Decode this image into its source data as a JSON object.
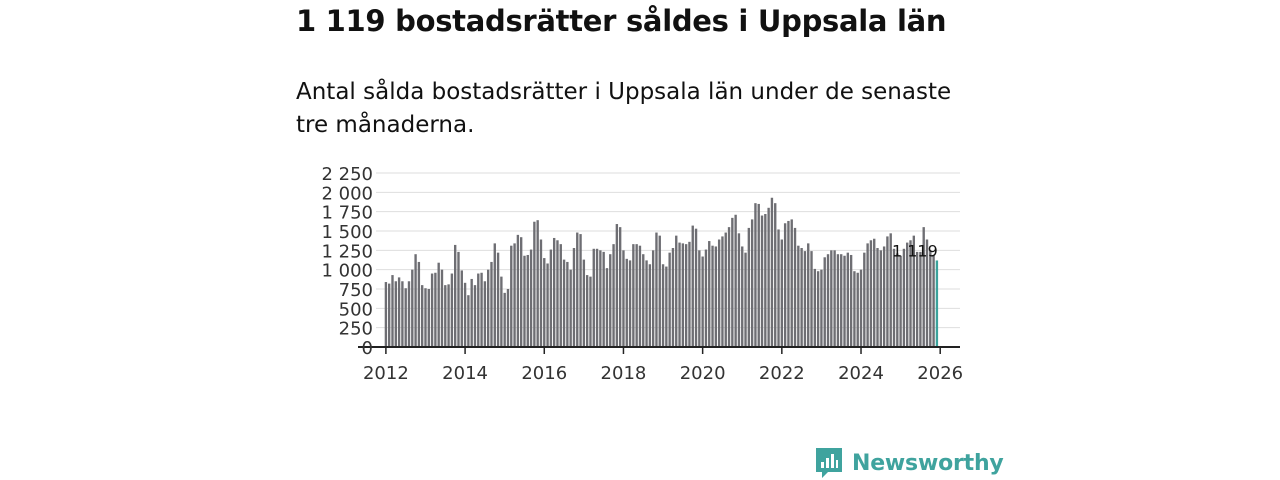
{
  "title": "1 119 bostadsrätter såldes i Uppsala län",
  "subtitle": "Antal sålda bostadsrätter i Uppsala län under de senaste tre månaderna.",
  "brand": {
    "name": "Newsworthy"
  },
  "colors": {
    "bar": "#6e6e73",
    "bar_highlight": "#3ba39c",
    "grid": "#dedede",
    "axis": "#222222",
    "brand": "#3fa39e"
  },
  "chart_data": {
    "type": "bar",
    "title": "1 119 bostadsrätter såldes i Uppsala län",
    "xlabel": "",
    "ylabel": "",
    "x_start": "2012-01",
    "xlim": [
      2011.75,
      2026.5
    ],
    "ylim": [
      0,
      2250
    ],
    "y_ticks": [
      0,
      250,
      500,
      750,
      1000,
      1250,
      1500,
      1750,
      2000,
      2250
    ],
    "y_tick_labels": [
      "0",
      "250",
      "500",
      "750",
      "1 000",
      "1 250",
      "1 500",
      "1 750",
      "2 000",
      "2 250"
    ],
    "x_ticks": [
      2012,
      2014,
      2016,
      2018,
      2020,
      2022,
      2024,
      2026
    ],
    "x_tick_labels": [
      "2012",
      "2014",
      "2016",
      "2018",
      "2020",
      "2022",
      "2024",
      "2026"
    ],
    "grid": true,
    "highlight_label": "1 119",
    "values": [
      840,
      820,
      930,
      850,
      900,
      850,
      760,
      850,
      1000,
      1200,
      1100,
      800,
      760,
      750,
      950,
      960,
      1090,
      1000,
      800,
      810,
      950,
      1320,
      1230,
      990,
      830,
      670,
      880,
      800,
      950,
      960,
      850,
      1000,
      1100,
      1340,
      1220,
      910,
      700,
      750,
      1310,
      1340,
      1450,
      1420,
      1180,
      1190,
      1260,
      1620,
      1640,
      1390,
      1150,
      1080,
      1260,
      1410,
      1380,
      1330,
      1130,
      1100,
      1000,
      1280,
      1480,
      1460,
      1130,
      930,
      910,
      1270,
      1270,
      1250,
      1230,
      1020,
      1200,
      1330,
      1590,
      1550,
      1250,
      1140,
      1120,
      1330,
      1330,
      1310,
      1200,
      1120,
      1070,
      1250,
      1480,
      1440,
      1070,
      1040,
      1220,
      1280,
      1440,
      1350,
      1340,
      1330,
      1360,
      1570,
      1530,
      1250,
      1170,
      1260,
      1370,
      1310,
      1300,
      1390,
      1430,
      1480,
      1550,
      1670,
      1710,
      1470,
      1300,
      1220,
      1540,
      1650,
      1860,
      1850,
      1700,
      1720,
      1800,
      1930,
      1860,
      1520,
      1390,
      1600,
      1630,
      1650,
      1540,
      1310,
      1280,
      1240,
      1340,
      1240,
      1010,
      980,
      1000,
      1160,
      1200,
      1250,
      1250,
      1200,
      1200,
      1180,
      1220,
      1190,
      980,
      960,
      1000,
      1220,
      1340,
      1380,
      1400,
      1280,
      1250,
      1300,
      1430,
      1470,
      1270,
      1210,
      1180,
      1270,
      1350,
      1380,
      1440,
      1230,
      1230,
      1550,
      1390,
      1250,
      1180
    ],
    "highlight_value": 1119,
    "highlight_date": "2026-01"
  }
}
